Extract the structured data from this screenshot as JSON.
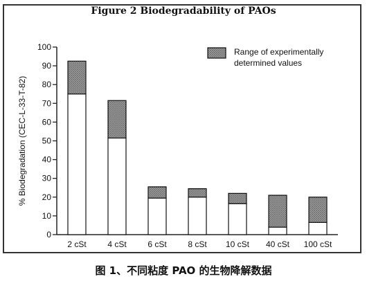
{
  "figure_title": "Figure 2 Biodegradability of PAOs",
  "caption": "图 1、不同粘度 PAO 的生物降解数据",
  "chart_data": {
    "type": "bar",
    "title": "Figure 2 Biodegradability of PAOs",
    "xlabel": "",
    "ylabel": "% Biodegradation (CEC-L-33-T-82)",
    "ylim": [
      0,
      100
    ],
    "yticks": [
      0,
      10,
      20,
      30,
      40,
      50,
      60,
      70,
      80,
      90,
      100
    ],
    "categories": [
      "2 cSt",
      "4 cSt",
      "6 cSt",
      "8 cSt",
      "10 cSt",
      "40 cSt",
      "100 cSt"
    ],
    "series": [
      {
        "name": "",
        "values": [
          75,
          51.5,
          19.5,
          20,
          16.5,
          4,
          6.5
        ]
      },
      {
        "name": "Range of experimentally determined values",
        "values": [
          17.5,
          20,
          6,
          4.5,
          5.5,
          17,
          13.5
        ]
      }
    ],
    "legend": {
      "label_line1": "Range of experimentally",
      "label_line2": "determined values",
      "position": "top-right"
    },
    "grid": false,
    "colors": {
      "bar_base": "#ffffff",
      "bar_range": "#8c8c8c",
      "axis": "#222222"
    }
  }
}
